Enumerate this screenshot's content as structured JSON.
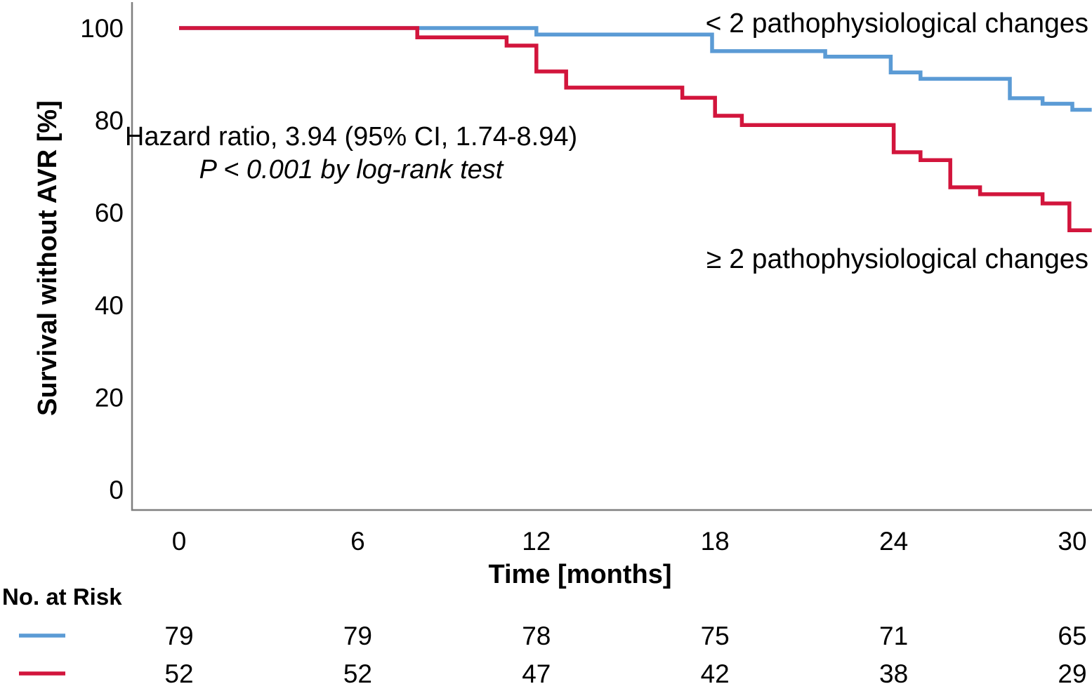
{
  "chart_data": {
    "type": "line",
    "subtype": "kaplan-meier-step",
    "title": "",
    "xlabel": "Time [months]",
    "ylabel": "Survival without AVR [%]",
    "xlim": [
      0,
      30.65
    ],
    "ylim": [
      0,
      105
    ],
    "x_ticks": [
      0,
      6,
      12,
      18,
      24,
      30
    ],
    "y_ticks": [
      0,
      20,
      40,
      60,
      80,
      100
    ],
    "grid": "off",
    "legend_position": "labels-on-plot",
    "axis_color": "#7f7f7f",
    "annotation": {
      "line1": "Hazard ratio, 3.94 (95% CI, 1.74-8.94)",
      "line2": "P < 0.001 by log-rank test"
    },
    "series": [
      {
        "name": "< 2 pathophysiological changes",
        "color": "#5B9BD5",
        "steps": [
          [
            0,
            100
          ],
          [
            12,
            98.6
          ],
          [
            17.9,
            95.0
          ],
          [
            21.7,
            93.8
          ],
          [
            23.9,
            90.4
          ],
          [
            24.9,
            89.0
          ],
          [
            27.9,
            84.8
          ],
          [
            29,
            83.6
          ],
          [
            30,
            82.3
          ],
          [
            30.65,
            82.3
          ]
        ]
      },
      {
        "name": "≥ 2 pathophysiological changes",
        "color": "#D2153C",
        "steps": [
          [
            0,
            100
          ],
          [
            8,
            98.0
          ],
          [
            11,
            96.2
          ],
          [
            12,
            90.6
          ],
          [
            13,
            87.1
          ],
          [
            16.9,
            84.9
          ],
          [
            18,
            81.0
          ],
          [
            18.9,
            79.0
          ],
          [
            24,
            73.1
          ],
          [
            24.9,
            71.4
          ],
          [
            25.9,
            65.5
          ],
          [
            26.9,
            64.0
          ],
          [
            29,
            62.0
          ],
          [
            29.9,
            56.2
          ],
          [
            30.65,
            56.2
          ]
        ]
      }
    ],
    "risk_table": {
      "title": "No. at Risk",
      "times": [
        0,
        6,
        12,
        18,
        24,
        30
      ],
      "rows": [
        {
          "name": "< 2 pathophysiological changes",
          "color": "#5B9BD5",
          "values": [
            "79",
            "79",
            "78",
            "75",
            "71",
            "65"
          ]
        },
        {
          "name": "≥ 2 pathophysiological changes",
          "color": "#D2153C",
          "values": [
            "52",
            "52",
            "47",
            "42",
            "38",
            "29"
          ]
        }
      ]
    }
  }
}
